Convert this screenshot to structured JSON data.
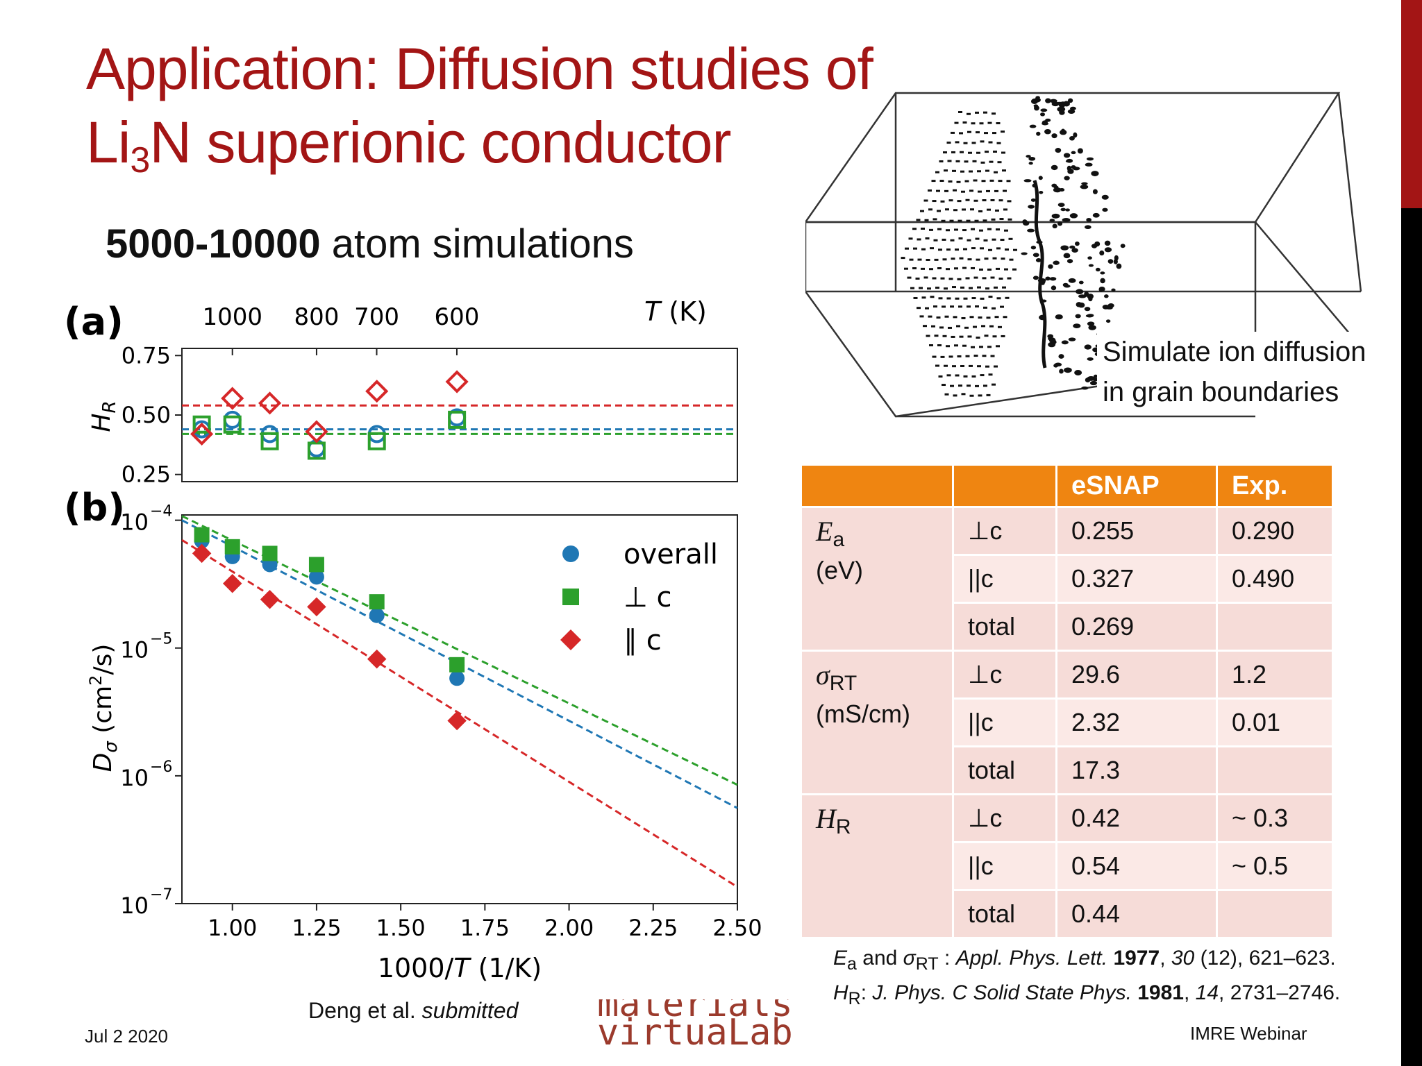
{
  "slide": {
    "title_line1": "Application: Diffusion studies of",
    "title_line2_prefix": "Li",
    "title_line2_sub": "3",
    "title_line2_rest": "N superionic conductor",
    "subtitle_bold": "5000-10000",
    "subtitle_rest": " atom simulations",
    "date": "Jul 2 2020",
    "credit_prefix": "Deng et al. ",
    "credit_italic": "submitted",
    "logo_line1": "materials",
    "logo_line2": "virtuaLab",
    "footer_right": "IMRE Webinar",
    "colors": {
      "title": "#a31515",
      "table_header": "#ef8511",
      "table_cell": "#f6dcd8",
      "blue": "#1f77b4",
      "green": "#2ca02c",
      "red": "#d62728"
    }
  },
  "grain_figure": {
    "caption_line1": "Simulate ion diffusion",
    "caption_line2": "in grain boundaries"
  },
  "table": {
    "headers": [
      "",
      "",
      "eSNAP",
      "Exp."
    ],
    "groups": [
      {
        "property_symbol": "E",
        "property_sub": "a",
        "property_unit": "(eV)",
        "rows": [
          {
            "dir": "⊥c",
            "esnap": "0.255",
            "exp": "0.290"
          },
          {
            "dir": "||c",
            "esnap": "0.327",
            "exp": "0.490"
          },
          {
            "dir": "total",
            "esnap": "0.269",
            "exp": ""
          }
        ]
      },
      {
        "property_symbol": "σ",
        "property_sub": "RT",
        "property_unit": "(mS/cm)",
        "rows": [
          {
            "dir": "⊥c",
            "esnap": "29.6",
            "exp": "1.2"
          },
          {
            "dir": "||c",
            "esnap": "2.32",
            "exp": "0.01"
          },
          {
            "dir": "total",
            "esnap": "17.3",
            "exp": ""
          }
        ]
      },
      {
        "property_symbol": "H",
        "property_sub": "R",
        "property_unit": "",
        "rows": [
          {
            "dir": "⊥c",
            "esnap": "0.42",
            "exp": "~ 0.3"
          },
          {
            "dir": "||c",
            "esnap": "0.54",
            "exp": "~ 0.5"
          },
          {
            "dir": "total",
            "esnap": "0.44",
            "exp": ""
          }
        ]
      }
    ]
  },
  "references": {
    "line1_sym": "E",
    "line1_sub": "a",
    "line1_mid": " and ",
    "line1_sym2": "σ",
    "line1_sub2": "RT",
    "line1_colon": " : ",
    "line1_journal": "Appl. Phys. Lett.",
    "line1_year": "1977",
    "line1_vol": "30",
    "line1_rest": " (12), 621–623.",
    "line2_sym": "H",
    "line2_sub": "R",
    "line2_colon": ": ",
    "line2_journal": "J. Phys. C Solid State Phys.",
    "line2_year": "1981",
    "line2_vol": "14",
    "line2_rest": ", 2731–2746."
  },
  "chart_data": [
    {
      "type": "scatter",
      "panel_label": "(a)",
      "ylabel": "H_R",
      "top_axis_label": "T (K)",
      "top_ticks": [
        "1000",
        "800",
        "700",
        "600"
      ],
      "x": [
        0.909,
        1.0,
        1.111,
        1.25,
        1.429,
        1.667
      ],
      "ylim": [
        0.22,
        0.78
      ],
      "xlim": [
        0.85,
        2.5
      ],
      "yticks": [
        "0.25",
        "0.50",
        "0.75"
      ],
      "series": [
        {
          "values": [
            0.44,
            0.48,
            0.42,
            0.36,
            0.42,
            0.49
          ],
          "marker": "circle-open",
          "color": "#1f77b4"
        },
        {
          "values": [
            0.46,
            0.46,
            0.39,
            0.35,
            0.39,
            0.48
          ],
          "marker": "square-open",
          "color": "#2ca02c"
        },
        {
          "values": [
            0.42,
            0.57,
            0.55,
            0.43,
            0.6,
            0.64
          ],
          "marker": "diamond-open",
          "color": "#d62728"
        }
      ],
      "fit_lines": [
        {
          "y": 0.44,
          "color": "#1f77b4"
        },
        {
          "y": 0.42,
          "color": "#2ca02c"
        },
        {
          "y": 0.54,
          "color": "#d62728"
        }
      ]
    },
    {
      "type": "scatter",
      "panel_label": "(b)",
      "xlabel": "1000/T (1/K)",
      "ylabel": "D_σ (cm²/s)",
      "log_y": true,
      "xlim": [
        0.85,
        2.5
      ],
      "ylim": [
        1e-07,
        0.00011
      ],
      "xticks": [
        "1.00",
        "1.25",
        "1.50",
        "1.75",
        "2.00",
        "2.25",
        "2.50"
      ],
      "yticks": [
        "10",
        "10",
        "10",
        "10"
      ],
      "ytick_exponents": [
        "−4",
        "−5",
        "−6",
        "−7"
      ],
      "legend_position": "top-right",
      "x": [
        0.909,
        1.0,
        1.111,
        1.25,
        1.429,
        1.667
      ],
      "series": [
        {
          "name": "overall",
          "values": [
            6.9e-05,
            5.2e-05,
            4.5e-05,
            3.6e-05,
            1.8e-05,
            5.8e-06
          ],
          "marker": "circle",
          "color": "#1f77b4"
        },
        {
          "name": "⊥ c",
          "values": [
            7.7e-05,
            6.2e-05,
            5.5e-05,
            4.5e-05,
            2.3e-05,
            7.4e-06
          ],
          "marker": "square",
          "color": "#2ca02c"
        },
        {
          "name": "∥ c",
          "values": [
            5.5e-05,
            3.2e-05,
            2.4e-05,
            2.1e-05,
            8.2e-06,
            2.7e-06
          ],
          "marker": "diamond",
          "color": "#d62728"
        }
      ],
      "fit_lines": [
        {
          "x0": 0.85,
          "y0": 0.000108,
          "x1": 2.5,
          "y1": 8.5e-07,
          "color": "#2ca02c"
        },
        {
          "x0": 0.85,
          "y0": 0.0001,
          "x1": 2.5,
          "y1": 5.6e-07,
          "color": "#1f77b4"
        },
        {
          "x0": 0.85,
          "y0": 7e-05,
          "x1": 2.5,
          "y1": 1.35e-07,
          "color": "#d62728"
        }
      ]
    }
  ]
}
